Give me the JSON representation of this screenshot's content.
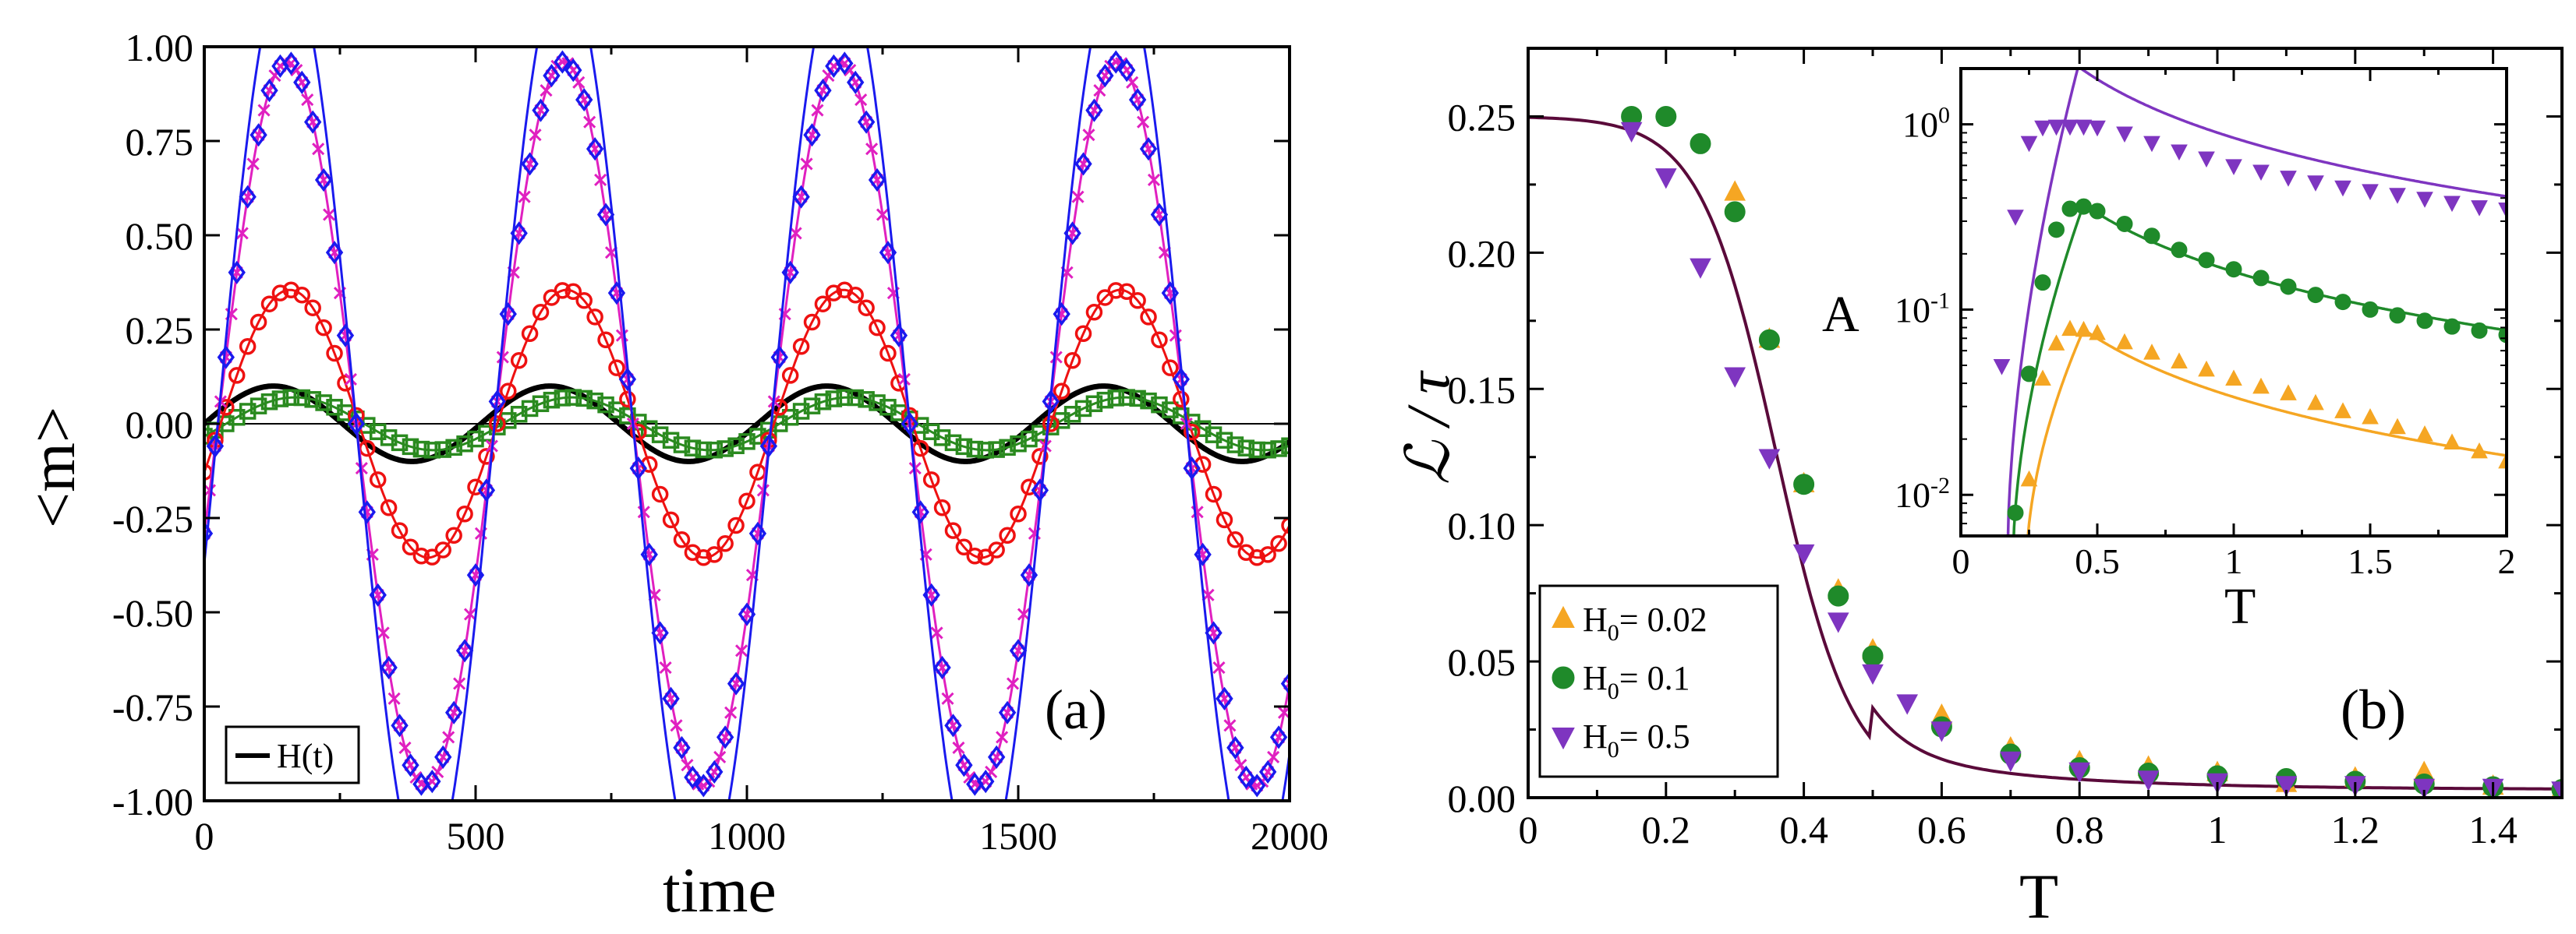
{
  "chart_data": [
    {
      "panel": "a",
      "type": "line",
      "panel_label": "(a)",
      "xlabel": "time",
      "ylabel": "<m>",
      "xlim": [
        0,
        2000
      ],
      "ylim": [
        -1.0,
        1.0
      ],
      "xticks": [
        0,
        500,
        1000,
        1500,
        2000
      ],
      "xtick_labels": [
        "0",
        "500",
        "1000",
        "1500",
        "2000"
      ],
      "yticks": [
        -1.0,
        -0.75,
        -0.5,
        -0.25,
        0.0,
        0.25,
        0.5,
        0.75,
        1.0
      ],
      "ytick_labels": [
        "-1.00",
        "-0.75",
        "-0.50",
        "-0.25",
        "0.00",
        "0.25",
        "0.50",
        "0.75",
        "1.00"
      ],
      "period": 510,
      "legend": [
        {
          "label": "H(t)",
          "color": "#000000"
        }
      ],
      "series": [
        {
          "name": "H(t)",
          "amplitude": 0.1,
          "lag": 0,
          "style": "line",
          "color": "#000000"
        },
        {
          "name": "green squares",
          "amplitude": 0.07,
          "lag": 40,
          "style": "markers+line",
          "marker": "square",
          "color": "#2a8a1f",
          "step": 20
        },
        {
          "name": "red circles",
          "amplitude": 0.355,
          "lag": 30,
          "style": "markers+line",
          "marker": "circle-open",
          "color": "#ee1111",
          "step": 20
        },
        {
          "name": "magenta crosses",
          "amplitude": 0.96,
          "lag": 25,
          "style": "markers+line",
          "marker": "x",
          "color": "#e020c0",
          "step": 10
        },
        {
          "name": "blue diamonds",
          "amplitude": 0.96,
          "lag": 25,
          "style": "markers",
          "marker": "diamond-open",
          "color": "#1a1aee",
          "step": 20
        },
        {
          "name": "blue fit",
          "amplitude": 1.22,
          "lag": 25,
          "style": "line",
          "color": "#1a1aee"
        }
      ]
    },
    {
      "panel": "b",
      "type": "scatter",
      "panel_label": "(b)",
      "xlabel": "T",
      "ylabel": "ℒ / τ",
      "xlim": [
        0,
        1.5
      ],
      "ylim": [
        0,
        0.275
      ],
      "xticks": [
        0,
        0.2,
        0.4,
        0.6,
        0.8,
        1,
        1.2,
        1.4
      ],
      "xtick_labels": [
        "0",
        "0.2",
        "0.4",
        "0.6",
        "0.8",
        "1",
        "1.2",
        "1.4"
      ],
      "yticks": [
        0,
        0.05,
        0.1,
        0.15,
        0.2,
        0.25
      ],
      "ytick_labels": [
        "0.00",
        "0.05",
        "0.10",
        "0.15",
        "0.20",
        "0.25"
      ],
      "legend": [
        {
          "label_main": "H",
          "label_sub": "0",
          "label_rest": "= 0.02",
          "marker": "triangle-up",
          "color": "#f5a623"
        },
        {
          "label_main": "H",
          "label_sub": "0",
          "label_rest": "= 0.1",
          "marker": "circle",
          "color": "#1f8a2a"
        },
        {
          "label_main": "H",
          "label_sub": "0",
          "label_rest": "= 0.5",
          "marker": "triangle-down",
          "color": "#7e35c0"
        }
      ],
      "series": [
        {
          "name": "H0 = 0.02",
          "marker": "triangle-up",
          "color": "#f5a623",
          "x": [
            0.3,
            0.35,
            0.4,
            0.45,
            0.5,
            0.6,
            0.7,
            0.8,
            0.9,
            1.0,
            1.1,
            1.2,
            1.3,
            1.4,
            1.5
          ],
          "y": [
            0.222,
            0.168,
            0.115,
            0.076,
            0.054,
            0.03,
            0.018,
            0.013,
            0.011,
            0.009,
            0.005,
            0.007,
            0.009,
            0.004,
            0.003
          ]
        },
        {
          "name": "H0 = 0.1",
          "marker": "circle",
          "color": "#1f8a2a",
          "x": [
            0.15,
            0.2,
            0.25,
            0.3,
            0.35,
            0.4,
            0.45,
            0.5,
            0.6,
            0.7,
            0.8,
            0.9,
            1.0,
            1.1,
            1.2,
            1.3,
            1.4,
            1.5
          ],
          "y": [
            0.25,
            0.25,
            0.24,
            0.215,
            0.168,
            0.115,
            0.074,
            0.052,
            0.026,
            0.016,
            0.011,
            0.009,
            0.008,
            0.007,
            0.006,
            0.005,
            0.004,
            0.003
          ]
        },
        {
          "name": "H0 = 0.5",
          "marker": "triangle-down",
          "color": "#7e35c0",
          "x": [
            0.15,
            0.2,
            0.25,
            0.3,
            0.35,
            0.4,
            0.45,
            0.5,
            0.55,
            0.6,
            0.7,
            0.8,
            0.9,
            1.0,
            1.1,
            1.2,
            1.3,
            1.4,
            1.5
          ],
          "y": [
            0.245,
            0.228,
            0.195,
            0.155,
            0.125,
            0.09,
            0.065,
            0.046,
            0.035,
            0.025,
            0.014,
            0.01,
            0.007,
            0.006,
            0.005,
            0.005,
            0.004,
            0.004,
            0.003
          ]
        }
      ],
      "fit": {
        "name": "fit",
        "color": "#5a0a3a",
        "plateau": 0.25,
        "Tc": 0.36,
        "width": 0.055
      }
    },
    {
      "panel": "b-inset",
      "type": "scatter",
      "xlabel": "T",
      "ylabel": "A",
      "yscale": "log",
      "xlim": [
        0,
        2
      ],
      "ylim": [
        0.006,
        2.0
      ],
      "xticks": [
        0,
        0.5,
        1,
        1.5,
        2
      ],
      "xtick_labels": [
        "0",
        "0.5",
        "1",
        "1.5",
        "2"
      ],
      "yticks": [
        0.01,
        0.1,
        1
      ],
      "ytick_labels": [
        {
          "base": "10",
          "exp": "-2"
        },
        {
          "base": "10",
          "exp": "-1"
        },
        {
          "base": "10",
          "exp": "0"
        }
      ],
      "series": [
        {
          "name": "H0 = 0.02",
          "marker": "triangle-up",
          "color": "#f5a623",
          "x": [
            0.25,
            0.3,
            0.35,
            0.4,
            0.45,
            0.5,
            0.6,
            0.7,
            0.8,
            0.9,
            1.0,
            1.1,
            1.2,
            1.3,
            1.4,
            1.5,
            1.6,
            1.7,
            1.8,
            1.9,
            2.0
          ],
          "y": [
            0.012,
            0.042,
            0.065,
            0.078,
            0.077,
            0.074,
            0.066,
            0.058,
            0.052,
            0.047,
            0.042,
            0.038,
            0.035,
            0.031,
            0.028,
            0.026,
            0.023,
            0.021,
            0.019,
            0.017,
            0.015
          ]
        },
        {
          "name": "H0 = 0.1",
          "marker": "circle",
          "color": "#1f8a2a",
          "x": [
            0.2,
            0.25,
            0.3,
            0.35,
            0.4,
            0.45,
            0.5,
            0.6,
            0.7,
            0.8,
            0.9,
            1.0,
            1.1,
            1.2,
            1.3,
            1.4,
            1.5,
            1.6,
            1.7,
            1.8,
            1.9,
            2.0
          ],
          "y": [
            0.008,
            0.045,
            0.14,
            0.27,
            0.35,
            0.36,
            0.34,
            0.29,
            0.25,
            0.21,
            0.185,
            0.165,
            0.148,
            0.133,
            0.12,
            0.11,
            0.1,
            0.093,
            0.087,
            0.081,
            0.077,
            0.073
          ]
        },
        {
          "name": "H0 = 0.5",
          "marker": "triangle-down",
          "color": "#7e35c0",
          "x": [
            0.15,
            0.2,
            0.25,
            0.3,
            0.35,
            0.4,
            0.45,
            0.5,
            0.6,
            0.7,
            0.8,
            0.9,
            1.0,
            1.1,
            1.2,
            1.3,
            1.4,
            1.5,
            1.6,
            1.7,
            1.8,
            1.9,
            2.0
          ],
          "y": [
            0.05,
            0.32,
            0.8,
            0.97,
            0.98,
            0.98,
            0.98,
            0.97,
            0.9,
            0.8,
            0.72,
            0.66,
            0.6,
            0.56,
            0.52,
            0.49,
            0.46,
            0.44,
            0.42,
            0.4,
            0.38,
            0.36,
            0.35
          ]
        }
      ],
      "fits": [
        {
          "color": "#f5a623",
          "peak": 0.078,
          "Tpeak": 0.45,
          "onset": 0.24
        },
        {
          "color": "#1f8a2a",
          "peak": 0.37,
          "Tpeak": 0.45,
          "onset": 0.19
        },
        {
          "color": "#7e35c0",
          "peak": 2.05,
          "Tpeak": 0.43,
          "onset": 0.17
        }
      ]
    }
  ]
}
